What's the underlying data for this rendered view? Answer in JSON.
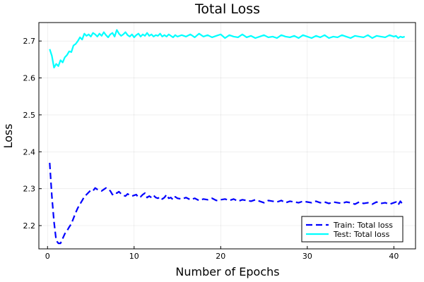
{
  "chart_data": {
    "type": "line",
    "title": "Total Loss",
    "xlabel": "Number of Epochs",
    "ylabel": "Loss",
    "xlim": [
      -1,
      42.5
    ],
    "ylim": [
      2.137,
      2.75
    ],
    "xticks": [
      0,
      10,
      20,
      30,
      40
    ],
    "yticks": [
      2.2,
      2.3,
      2.4,
      2.5,
      2.6,
      2.7
    ],
    "grid": true,
    "legend_position": "bottom-right",
    "series": [
      {
        "name": "Train: Total loss",
        "color": "#0000ff",
        "style": "dashed",
        "x": [
          0.25,
          0.5,
          0.75,
          1.0,
          1.25,
          1.5,
          1.75,
          2.0,
          2.25,
          2.5,
          2.75,
          3.0,
          3.25,
          3.5,
          3.75,
          4.0,
          4.25,
          4.5,
          4.75,
          5.0,
          5.25,
          5.5,
          5.75,
          6.0,
          6.25,
          6.5,
          6.75,
          7.0,
          7.25,
          7.5,
          7.75,
          8.0,
          8.25,
          8.5,
          8.75,
          9.0,
          9.25,
          9.5,
          9.75,
          10.0,
          10.25,
          10.5,
          10.75,
          11.0,
          11.25,
          11.5,
          11.75,
          12.0,
          12.25,
          12.5,
          12.75,
          13.0,
          13.25,
          13.5,
          13.75,
          14.0,
          14.25,
          14.5,
          14.75,
          15.0,
          15.5,
          16.0,
          16.5,
          17.0,
          17.5,
          18.0,
          18.5,
          19.0,
          19.5,
          20.0,
          20.5,
          21.0,
          21.5,
          22.0,
          22.5,
          23.0,
          23.5,
          24.0,
          24.5,
          25.0,
          25.5,
          26.0,
          26.5,
          27.0,
          27.5,
          28.0,
          28.5,
          29.0,
          29.5,
          30.0,
          30.5,
          31.0,
          31.5,
          32.0,
          32.5,
          33.0,
          33.5,
          34.0,
          34.5,
          35.0,
          35.5,
          36.0,
          36.5,
          37.0,
          37.5,
          38.0,
          38.5,
          39.0,
          39.5,
          40.0,
          40.25,
          40.5,
          40.75,
          41.0,
          41.25
        ],
        "y": [
          2.37,
          2.28,
          2.21,
          2.16,
          2.152,
          2.152,
          2.165,
          2.178,
          2.186,
          2.196,
          2.205,
          2.22,
          2.235,
          2.248,
          2.258,
          2.268,
          2.278,
          2.284,
          2.29,
          2.296,
          2.294,
          2.302,
          2.298,
          2.296,
          2.294,
          2.298,
          2.302,
          2.298,
          2.294,
          2.284,
          2.29,
          2.288,
          2.292,
          2.286,
          2.282,
          2.28,
          2.286,
          2.282,
          2.28,
          2.282,
          2.284,
          2.276,
          2.278,
          2.284,
          2.288,
          2.276,
          2.28,
          2.276,
          2.282,
          2.276,
          2.274,
          2.278,
          2.272,
          2.276,
          2.284,
          2.274,
          2.276,
          2.27,
          2.278,
          2.274,
          2.272,
          2.276,
          2.27,
          2.274,
          2.268,
          2.272,
          2.27,
          2.274,
          2.268,
          2.27,
          2.272,
          2.268,
          2.272,
          2.266,
          2.27,
          2.268,
          2.266,
          2.27,
          2.266,
          2.262,
          2.268,
          2.266,
          2.264,
          2.268,
          2.262,
          2.266,
          2.264,
          2.262,
          2.266,
          2.264,
          2.262,
          2.266,
          2.262,
          2.264,
          2.26,
          2.264,
          2.262,
          2.26,
          2.264,
          2.262,
          2.258,
          2.264,
          2.26,
          2.262,
          2.258,
          2.264,
          2.26,
          2.262,
          2.258,
          2.262,
          2.264,
          2.256,
          2.266,
          2.258,
          2.256
        ]
      },
      {
        "name": "Test: Total loss",
        "color": "#00ffff",
        "style": "solid",
        "x": [
          0.25,
          0.5,
          0.75,
          1.0,
          1.25,
          1.5,
          1.75,
          2.0,
          2.25,
          2.5,
          2.75,
          3.0,
          3.25,
          3.5,
          3.75,
          4.0,
          4.25,
          4.5,
          4.75,
          5.0,
          5.25,
          5.5,
          5.75,
          6.0,
          6.25,
          6.5,
          6.75,
          7.0,
          7.25,
          7.5,
          7.75,
          8.0,
          8.25,
          8.5,
          8.75,
          9.0,
          9.25,
          9.5,
          9.75,
          10.0,
          10.25,
          10.5,
          10.75,
          11.0,
          11.25,
          11.5,
          11.75,
          12.0,
          12.25,
          12.5,
          12.75,
          13.0,
          13.25,
          13.5,
          13.75,
          14.0,
          14.25,
          14.5,
          14.75,
          15.0,
          15.5,
          16.0,
          16.5,
          17.0,
          17.5,
          18.0,
          18.5,
          19.0,
          19.5,
          20.0,
          20.5,
          21.0,
          21.5,
          22.0,
          22.5,
          23.0,
          23.5,
          24.0,
          24.5,
          25.0,
          25.5,
          26.0,
          26.5,
          27.0,
          27.5,
          28.0,
          28.5,
          29.0,
          29.5,
          30.0,
          30.5,
          31.0,
          31.5,
          32.0,
          32.5,
          33.0,
          33.5,
          34.0,
          34.5,
          35.0,
          35.5,
          36.0,
          36.5,
          37.0,
          37.5,
          38.0,
          38.5,
          39.0,
          39.5,
          40.0,
          40.25,
          40.5,
          40.75,
          41.0,
          41.25
        ],
        "y": [
          2.678,
          2.66,
          2.628,
          2.638,
          2.632,
          2.648,
          2.642,
          2.656,
          2.662,
          2.672,
          2.67,
          2.688,
          2.692,
          2.7,
          2.71,
          2.704,
          2.72,
          2.714,
          2.718,
          2.712,
          2.722,
          2.718,
          2.712,
          2.72,
          2.714,
          2.724,
          2.716,
          2.71,
          2.718,
          2.722,
          2.712,
          2.73,
          2.72,
          2.714,
          2.718,
          2.724,
          2.716,
          2.712,
          2.718,
          2.71,
          2.716,
          2.72,
          2.712,
          2.718,
          2.714,
          2.722,
          2.714,
          2.718,
          2.712,
          2.716,
          2.714,
          2.72,
          2.712,
          2.716,
          2.712,
          2.718,
          2.714,
          2.71,
          2.716,
          2.712,
          2.716,
          2.712,
          2.718,
          2.71,
          2.72,
          2.712,
          2.716,
          2.71,
          2.714,
          2.718,
          2.708,
          2.716,
          2.712,
          2.71,
          2.718,
          2.71,
          2.714,
          2.708,
          2.712,
          2.716,
          2.71,
          2.712,
          2.708,
          2.716,
          2.712,
          2.71,
          2.714,
          2.708,
          2.716,
          2.712,
          2.708,
          2.714,
          2.71,
          2.716,
          2.708,
          2.712,
          2.71,
          2.716,
          2.712,
          2.708,
          2.714,
          2.712,
          2.71,
          2.716,
          2.708,
          2.714,
          2.712,
          2.71,
          2.716,
          2.712,
          2.714,
          2.708,
          2.712,
          2.71,
          2.712
        ]
      }
    ]
  }
}
